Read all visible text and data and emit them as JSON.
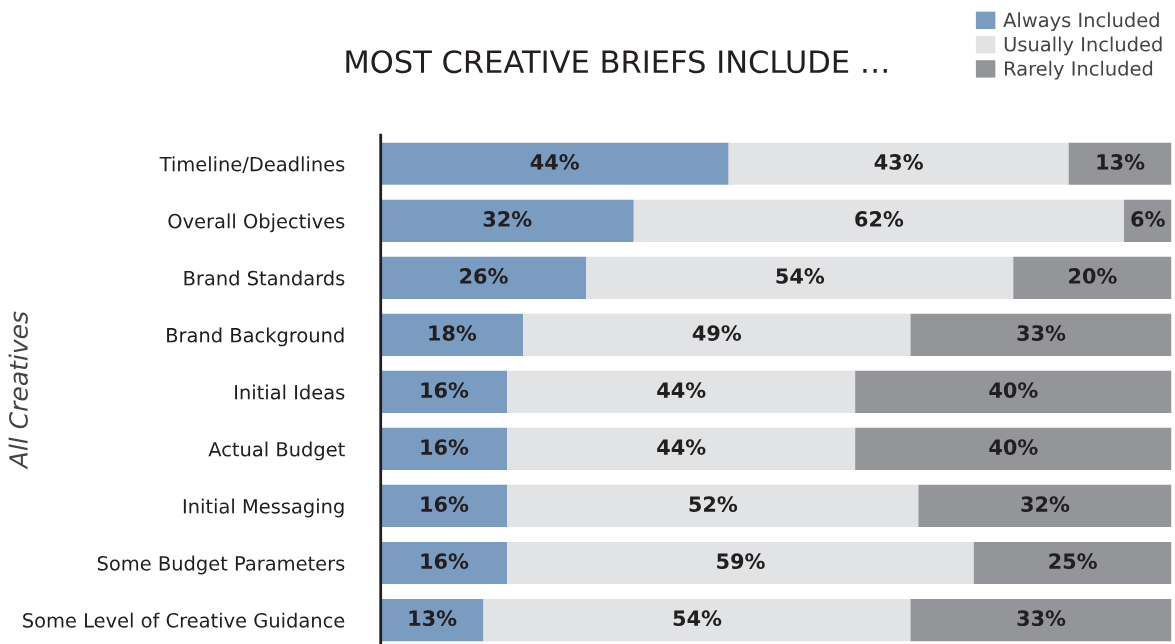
{
  "chart_data": {
    "type": "bar",
    "orientation": "horizontal",
    "stacked": true,
    "title": "MOST CREATIVE BRIEFS INCLUDE …",
    "ylabel": "All Creatives",
    "categories": [
      "Timeline/Deadlines",
      "Overall Objectives",
      "Brand Standards",
      "Brand Background",
      "Initial Ideas",
      "Actual Budget",
      "Initial Messaging",
      "Some Budget Parameters",
      "Some Level of Creative Guidance"
    ],
    "series": [
      {
        "name": "Always Included",
        "color": "#7b9cc1",
        "values": [
          44,
          32,
          26,
          18,
          16,
          16,
          16,
          16,
          13
        ],
        "value_labels": [
          "44%",
          "32%",
          "26%",
          "18%",
          "16%",
          "16%",
          "16%",
          "16%",
          "13%"
        ]
      },
      {
        "name": "Usually Included",
        "color": "#e2e3e5",
        "values": [
          43,
          62,
          54,
          49,
          44,
          44,
          52,
          59,
          54
        ],
        "value_labels": [
          "43%",
          "62%",
          "54%",
          "49%",
          "44%",
          "44%",
          "52%",
          "59%",
          "54%"
        ]
      },
      {
        "name": "Rarely Included",
        "color": "#939598",
        "values": [
          13,
          6,
          20,
          33,
          40,
          40,
          32,
          25,
          33
        ],
        "value_labels": [
          "13%",
          "6%",
          "20%",
          "33%",
          "40%",
          "40%",
          "32%",
          "25%",
          "33%"
        ]
      }
    ],
    "tick_labels": "y",
    "legend": "top right"
  }
}
